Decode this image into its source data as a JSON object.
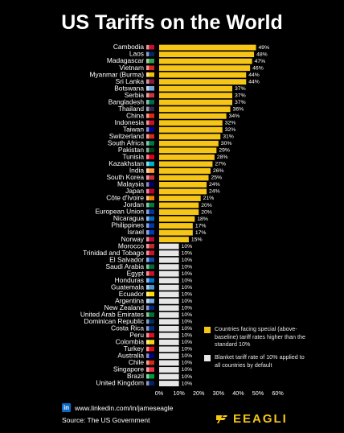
{
  "title": "US Tariffs on the World",
  "chart_data": {
    "type": "bar",
    "orientation": "horizontal",
    "categories": [
      "Cambodia",
      "Laos",
      "Madagascar",
      "Vietnam",
      "Myanmar (Burma)",
      "Sri Lanka",
      "Botswana",
      "Serbia",
      "Bangladesh",
      "Thailand",
      "China",
      "Indonesia",
      "Taiwan",
      "Switzerland",
      "South Africa",
      "Pakistan",
      "Tunisia",
      "Kazakhstan",
      "India",
      "South Korea",
      "Malaysia",
      "Japan",
      "Côte d'Ivoire",
      "Jordan",
      "European Union",
      "Nicaragua",
      "Philippines",
      "Israel",
      "Norway",
      "Morocco",
      "Trinidad and Tobago",
      "El Salvador",
      "Saudi Arabia",
      "Egypt",
      "Honduras",
      "Guatemala",
      "Ecuador",
      "Argentina",
      "New Zealand",
      "United Arab Emirates",
      "Dominican Republic",
      "Costa Rica",
      "Peru",
      "Colombia",
      "Turkey",
      "Australia",
      "Chile",
      "Singapore",
      "Brazil",
      "United Kingdom"
    ],
    "values": [
      49,
      48,
      47,
      46,
      44,
      44,
      37,
      37,
      37,
      36,
      34,
      32,
      32,
      31,
      30,
      29,
      28,
      27,
      26,
      25,
      24,
      24,
      21,
      20,
      20,
      18,
      17,
      17,
      15,
      10,
      10,
      10,
      10,
      10,
      10,
      10,
      10,
      10,
      10,
      10,
      10,
      10,
      10,
      10,
      10,
      10,
      10,
      10,
      10,
      10
    ],
    "value_labels": [
      "49%",
      "48%",
      "47%",
      "46%",
      "44%",
      "44%",
      "37%",
      "37%",
      "37%",
      "36%",
      "34%",
      "32%",
      "32%",
      "31%",
      "30%",
      "29%",
      "28%",
      "27%",
      "26%",
      "25%",
      "24%",
      "24%",
      "21%",
      "20%",
      "20%",
      "18%",
      "17%",
      "17%",
      "15%",
      "10%",
      "10%",
      "10%",
      "10%",
      "10%",
      "10%",
      "10%",
      "10%",
      "10%",
      "10%",
      "10%",
      "10%",
      "10%",
      "10%",
      "10%",
      "10%",
      "10%",
      "10%",
      "10%",
      "10%",
      "10%"
    ],
    "xlim": [
      0,
      60
    ],
    "xticks": [
      "0%",
      "10%",
      "20%",
      "30%",
      "40%",
      "50%",
      "60%"
    ],
    "grid": false,
    "legend_placement": "bottom-right",
    "series_colors": {
      "special": "#f5c518",
      "baseline": "#e6e6e6"
    },
    "legend": [
      {
        "key": "special",
        "label": "Countries facing special (above-baseline) tariff rates higher than the standard 10%"
      },
      {
        "key": "baseline",
        "label": "Blanket tariff rate of 10% applied to all countries by default"
      }
    ],
    "flag_colors": [
      "#c8102e",
      "#002868",
      "#2f9e44",
      "#da251d",
      "#f2c200",
      "#8d1b3d",
      "#75aadb",
      "#c6363c",
      "#006a4e",
      "#2d2a4a",
      "#de2910",
      "#ce1126",
      "#000095",
      "#d52b1e",
      "#007749",
      "#01411c",
      "#e70013",
      "#00afca",
      "#ff9933",
      "#cd2e3a",
      "#010066",
      "#bc002d",
      "#f77f00",
      "#007a3d",
      "#003399",
      "#0067c6",
      "#0038a8",
      "#0038b8",
      "#ba0c2f",
      "#c1272d",
      "#ce1126",
      "#0f47af",
      "#006c35",
      "#ce1126",
      "#0073cf",
      "#4997d0",
      "#ffdd00",
      "#74acdf",
      "#00247d",
      "#00732f",
      "#002d62",
      "#002b7f",
      "#d91023",
      "#fcd116",
      "#e30a17",
      "#00008b",
      "#d52b1e",
      "#ef3340",
      "#009c3b",
      "#012169"
    ]
  },
  "legend_special_text": "Countries facing special (above-baseline) tariff rates higher than the standard 10%",
  "legend_baseline_text": "Blanket tariff rate of 10% applied to all countries by default",
  "footer": {
    "linkedin_icon": "in",
    "linkedin_url": "www.linkedin.com/in/jameseagle",
    "source": "Source: The US Government",
    "brand": "EEAGLI"
  }
}
